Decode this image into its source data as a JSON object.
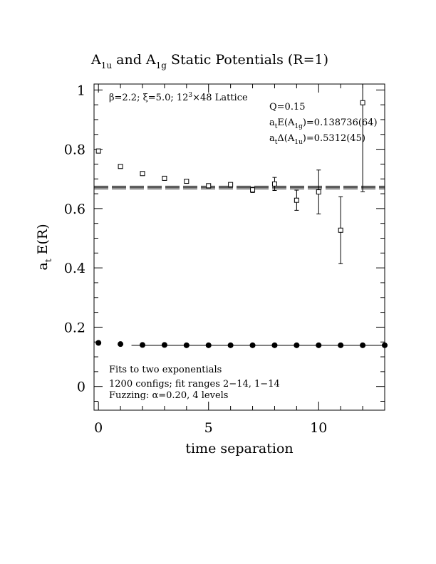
{
  "chart_data": {
    "type": "scatter",
    "title": {
      "main": "A",
      "sub1": "1u",
      "mid": " and A",
      "sub2": "1g",
      "tail": " Static Potentials (R=1)"
    },
    "xlabel": "time separation",
    "ylabel": {
      "main": "a",
      "sub": "t",
      "tail": " E(R)"
    },
    "xlim": [
      -0.2,
      13
    ],
    "ylim": [
      -0.08,
      1.02
    ],
    "x_ticks": [
      0,
      5,
      10
    ],
    "x_tick_labels": [
      "0",
      "5",
      "10"
    ],
    "y_ticks": [
      0,
      0.2,
      0.4,
      0.6,
      0.8,
      1
    ],
    "y_tick_labels": [
      "0",
      "0.2",
      "0.4",
      "0.6",
      "0.8",
      "1"
    ],
    "grid": false,
    "annotations": {
      "lattice": {
        "beta": "β",
        "t1": "=2.2; ",
        "xi": "ξ",
        "t2": "=5.0; 12",
        "sup": "3",
        "t3": "×48 Lattice"
      },
      "q": "Q=0.15",
      "energy": {
        "a": "a",
        "sub_t": "t",
        "e": "E(A",
        "sub": "1g",
        "val": ")=0.138736(64)"
      },
      "gap": {
        "a": "a",
        "sub_t": "t",
        "d": "Δ(A",
        "sub": "1u",
        "val": ")=0.5312(45)"
      },
      "fits": "Fits to two exponentials",
      "configs": "1200 configs; fit ranges 2−14, 1−14",
      "fuzz": {
        "pre": "Fuzzing: ",
        "alpha": "α",
        "post": "=0.20, 4 levels"
      }
    },
    "series": [
      {
        "marker": "open-square",
        "points": [
          {
            "x": 0,
            "y": 0.794,
            "err": 0.003
          },
          {
            "x": 1,
            "y": 0.742,
            "err": 0.003
          },
          {
            "x": 2,
            "y": 0.718,
            "err": 0.003
          },
          {
            "x": 3,
            "y": 0.702,
            "err": 0.003
          },
          {
            "x": 4,
            "y": 0.692,
            "err": 0.004
          },
          {
            "x": 5,
            "y": 0.677,
            "err": 0.005
          },
          {
            "x": 6,
            "y": 0.681,
            "err": 0.006
          },
          {
            "x": 7,
            "y": 0.663,
            "err": 0.009
          },
          {
            "x": 8,
            "y": 0.683,
            "err": 0.022
          },
          {
            "x": 9,
            "y": 0.628,
            "err": 0.034
          },
          {
            "x": 10,
            "y": 0.656,
            "err": 0.074
          },
          {
            "x": 11,
            "y": 0.527,
            "err": 0.113
          },
          {
            "x": 12,
            "y": 0.957,
            "err": 0.3
          }
        ],
        "fit": {
          "value": 0.671,
          "err": 0.0045,
          "x_from": -0.2,
          "x_to": 13
        }
      },
      {
        "marker": "filled-circle",
        "points": [
          {
            "x": 0,
            "y": 0.147
          },
          {
            "x": 1,
            "y": 0.143
          },
          {
            "x": 2,
            "y": 0.14
          },
          {
            "x": 3,
            "y": 0.14
          },
          {
            "x": 4,
            "y": 0.139
          },
          {
            "x": 5,
            "y": 0.139
          },
          {
            "x": 6,
            "y": 0.139
          },
          {
            "x": 7,
            "y": 0.139
          },
          {
            "x": 8,
            "y": 0.139
          },
          {
            "x": 9,
            "y": 0.139
          },
          {
            "x": 10,
            "y": 0.139
          },
          {
            "x": 11,
            "y": 0.139
          },
          {
            "x": 12,
            "y": 0.139
          },
          {
            "x": 13,
            "y": 0.139
          }
        ],
        "fit": {
          "value": 0.1387,
          "x_from": 1.5,
          "x_to": 13
        }
      }
    ]
  }
}
